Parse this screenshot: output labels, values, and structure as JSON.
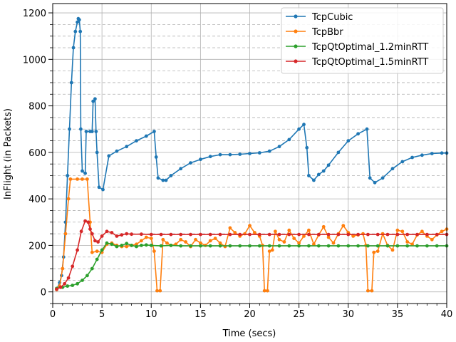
{
  "chart_data": {
    "type": "line",
    "xlabel": "Time (secs)",
    "ylabel": "InFlight (in Packets)",
    "xlim": [
      0,
      40
    ],
    "ylim": [
      -50,
      1240
    ],
    "x_ticks": [
      0,
      5,
      10,
      15,
      20,
      25,
      30,
      35,
      40
    ],
    "x_tick_labels": [
      "0",
      "5",
      "10",
      "15",
      "20",
      "25",
      "30",
      "35",
      "40"
    ],
    "y_ticks": [
      0,
      200,
      400,
      600,
      800,
      1000,
      1200
    ],
    "y_tick_labels": [
      "0",
      "200",
      "400",
      "600",
      "800",
      "1000",
      "1200"
    ],
    "y_minor_step": 50,
    "grid": "major solid, minor dashed",
    "legend_position": "top-right",
    "series": [
      {
        "name": "TcpCubic",
        "color": "#1f77b4",
        "points": [
          [
            0.4,
            10
          ],
          [
            0.7,
            40
          ],
          [
            0.9,
            70
          ],
          [
            1.1,
            150
          ],
          [
            1.3,
            300
          ],
          [
            1.5,
            500
          ],
          [
            1.7,
            700
          ],
          [
            1.9,
            900
          ],
          [
            2.1,
            1050
          ],
          [
            2.3,
            1120
          ],
          [
            2.5,
            1160
          ],
          [
            2.6,
            1175
          ],
          [
            2.7,
            1170
          ],
          [
            2.8,
            1120
          ],
          [
            2.85,
            700
          ],
          [
            3.0,
            520
          ],
          [
            3.3,
            510
          ],
          [
            3.4,
            690
          ],
          [
            3.8,
            690
          ],
          [
            4.0,
            690
          ],
          [
            4.1,
            820
          ],
          [
            4.3,
            830
          ],
          [
            4.4,
            690
          ],
          [
            4.5,
            600
          ],
          [
            4.7,
            450
          ],
          [
            5.1,
            440
          ],
          [
            5.7,
            585
          ],
          [
            6.5,
            605
          ],
          [
            7.5,
            625
          ],
          [
            8.5,
            650
          ],
          [
            9.5,
            670
          ],
          [
            10.3,
            690
          ],
          [
            10.5,
            580
          ],
          [
            10.7,
            490
          ],
          [
            11.2,
            480
          ],
          [
            11.5,
            480
          ],
          [
            12.0,
            500
          ],
          [
            13.0,
            530
          ],
          [
            14.0,
            555
          ],
          [
            15.0,
            570
          ],
          [
            16.0,
            582
          ],
          [
            17.0,
            590
          ],
          [
            18.0,
            590
          ],
          [
            19.0,
            592
          ],
          [
            20.0,
            595
          ],
          [
            21.0,
            598
          ],
          [
            22.0,
            605
          ],
          [
            23.0,
            625
          ],
          [
            24.0,
            655
          ],
          [
            25.0,
            700
          ],
          [
            25.5,
            720
          ],
          [
            25.8,
            620
          ],
          [
            26.0,
            500
          ],
          [
            26.5,
            480
          ],
          [
            27.0,
            505
          ],
          [
            27.5,
            520
          ],
          [
            28.0,
            545
          ],
          [
            29.0,
            600
          ],
          [
            30.0,
            650
          ],
          [
            31.0,
            680
          ],
          [
            31.9,
            700
          ],
          [
            32.2,
            490
          ],
          [
            32.7,
            470
          ],
          [
            33.5,
            490
          ],
          [
            34.5,
            530
          ],
          [
            35.5,
            560
          ],
          [
            36.5,
            578
          ],
          [
            37.5,
            588
          ],
          [
            38.5,
            595
          ],
          [
            39.5,
            597
          ],
          [
            40.0,
            597
          ]
        ]
      },
      {
        "name": "TcpBbr",
        "color": "#ff7f0e",
        "points": [
          [
            0.4,
            10
          ],
          [
            0.7,
            25
          ],
          [
            1.0,
            100
          ],
          [
            1.3,
            250
          ],
          [
            1.6,
            400
          ],
          [
            1.8,
            485
          ],
          [
            2.5,
            485
          ],
          [
            3.0,
            485
          ],
          [
            3.5,
            485
          ],
          [
            3.8,
            300
          ],
          [
            4.0,
            170
          ],
          [
            4.5,
            175
          ],
          [
            5.0,
            170
          ],
          [
            5.5,
            205
          ],
          [
            6.0,
            210
          ],
          [
            6.5,
            200
          ],
          [
            7.0,
            195
          ],
          [
            7.5,
            195
          ],
          [
            8.0,
            200
          ],
          [
            8.5,
            205
          ],
          [
            9.0,
            220
          ],
          [
            9.5,
            235
          ],
          [
            10.0,
            230
          ],
          [
            10.3,
            175
          ],
          [
            10.6,
            5
          ],
          [
            10.9,
            5
          ],
          [
            11.2,
            225
          ],
          [
            11.6,
            210
          ],
          [
            12.0,
            200
          ],
          [
            12.5,
            205
          ],
          [
            13.0,
            225
          ],
          [
            13.5,
            215
          ],
          [
            14.0,
            195
          ],
          [
            14.5,
            225
          ],
          [
            15.0,
            210
          ],
          [
            15.5,
            200
          ],
          [
            16.0,
            220
          ],
          [
            16.5,
            230
          ],
          [
            17.0,
            210
          ],
          [
            17.5,
            195
          ],
          [
            18.0,
            275
          ],
          [
            18.5,
            255
          ],
          [
            19.0,
            240
          ],
          [
            19.5,
            250
          ],
          [
            20.0,
            285
          ],
          [
            20.5,
            255
          ],
          [
            21.0,
            240
          ],
          [
            21.3,
            200
          ],
          [
            21.5,
            5
          ],
          [
            21.8,
            5
          ],
          [
            22.0,
            175
          ],
          [
            22.3,
            180
          ],
          [
            22.6,
            260
          ],
          [
            23.0,
            225
          ],
          [
            23.5,
            215
          ],
          [
            24.0,
            265
          ],
          [
            24.5,
            230
          ],
          [
            25.0,
            210
          ],
          [
            25.5,
            240
          ],
          [
            26.0,
            265
          ],
          [
            26.5,
            205
          ],
          [
            27.0,
            245
          ],
          [
            27.5,
            280
          ],
          [
            28.0,
            235
          ],
          [
            28.5,
            210
          ],
          [
            29.0,
            250
          ],
          [
            29.5,
            285
          ],
          [
            30.0,
            255
          ],
          [
            30.5,
            240
          ],
          [
            31.0,
            245
          ],
          [
            31.5,
            250
          ],
          [
            31.8,
            200
          ],
          [
            32.0,
            5
          ],
          [
            32.4,
            5
          ],
          [
            32.6,
            170
          ],
          [
            33.0,
            175
          ],
          [
            33.5,
            250
          ],
          [
            34.0,
            200
          ],
          [
            34.5,
            180
          ],
          [
            35.0,
            265
          ],
          [
            35.5,
            260
          ],
          [
            36.0,
            215
          ],
          [
            36.5,
            205
          ],
          [
            37.0,
            245
          ],
          [
            37.5,
            260
          ],
          [
            38.0,
            240
          ],
          [
            38.5,
            225
          ],
          [
            39.0,
            245
          ],
          [
            39.5,
            260
          ],
          [
            40.0,
            270
          ]
        ]
      },
      {
        "name": "TcpQtOptimal_1.2minRTT",
        "color": "#2ca02c",
        "points": [
          [
            0.4,
            15
          ],
          [
            1.0,
            20
          ],
          [
            1.5,
            25
          ],
          [
            2.0,
            28
          ],
          [
            2.5,
            35
          ],
          [
            3.0,
            50
          ],
          [
            3.5,
            70
          ],
          [
            4.0,
            100
          ],
          [
            4.5,
            140
          ],
          [
            5.0,
            180
          ],
          [
            5.5,
            210
          ],
          [
            6.0,
            205
          ],
          [
            6.5,
            195
          ],
          [
            7.0,
            200
          ],
          [
            7.5,
            208
          ],
          [
            8.0,
            200
          ],
          [
            8.5,
            195
          ],
          [
            9.0,
            200
          ],
          [
            9.5,
            202
          ],
          [
            10.0,
            200
          ],
          [
            11.0,
            198
          ],
          [
            12.0,
            200
          ],
          [
            13.0,
            198
          ],
          [
            14.0,
            198
          ],
          [
            15.0,
            198
          ],
          [
            16.0,
            198
          ],
          [
            17.0,
            198
          ],
          [
            18.0,
            198
          ],
          [
            19.0,
            198
          ],
          [
            20.0,
            198
          ],
          [
            21.0,
            198
          ],
          [
            22.0,
            198
          ],
          [
            23.0,
            198
          ],
          [
            24.0,
            198
          ],
          [
            25.0,
            198
          ],
          [
            26.0,
            198
          ],
          [
            27.0,
            198
          ],
          [
            28.0,
            198
          ],
          [
            29.0,
            198
          ],
          [
            30.0,
            198
          ],
          [
            31.0,
            198
          ],
          [
            32.0,
            198
          ],
          [
            33.0,
            198
          ],
          [
            34.0,
            198
          ],
          [
            35.0,
            198
          ],
          [
            36.0,
            198
          ],
          [
            37.0,
            198
          ],
          [
            38.0,
            198
          ],
          [
            39.0,
            198
          ],
          [
            40.0,
            198
          ]
        ]
      },
      {
        "name": "TcpQtOptimal_1.5minRTT",
        "color": "#d62728",
        "points": [
          [
            0.4,
            12
          ],
          [
            0.8,
            20
          ],
          [
            1.2,
            35
          ],
          [
            1.6,
            60
          ],
          [
            2.0,
            110
          ],
          [
            2.5,
            180
          ],
          [
            2.9,
            260
          ],
          [
            3.3,
            305
          ],
          [
            3.6,
            300
          ],
          [
            3.8,
            270
          ],
          [
            4.0,
            250
          ],
          [
            4.3,
            220
          ],
          [
            4.6,
            215
          ],
          [
            5.0,
            240
          ],
          [
            5.5,
            260
          ],
          [
            6.0,
            255
          ],
          [
            6.5,
            240
          ],
          [
            7.0,
            245
          ],
          [
            7.5,
            250
          ],
          [
            8.0,
            248
          ],
          [
            9.0,
            248
          ],
          [
            10.0,
            247
          ],
          [
            11.0,
            247
          ],
          [
            12.0,
            247
          ],
          [
            13.0,
            247
          ],
          [
            14.0,
            247
          ],
          [
            15.0,
            247
          ],
          [
            16.0,
            247
          ],
          [
            17.0,
            247
          ],
          [
            18.0,
            247
          ],
          [
            19.0,
            247
          ],
          [
            20.0,
            247
          ],
          [
            21.0,
            247
          ],
          [
            22.0,
            247
          ],
          [
            23.0,
            247
          ],
          [
            24.0,
            247
          ],
          [
            25.0,
            247
          ],
          [
            26.0,
            247
          ],
          [
            27.0,
            247
          ],
          [
            28.0,
            247
          ],
          [
            29.0,
            247
          ],
          [
            30.0,
            247
          ],
          [
            31.0,
            247
          ],
          [
            32.0,
            247
          ],
          [
            33.0,
            247
          ],
          [
            34.0,
            247
          ],
          [
            35.0,
            247
          ],
          [
            36.0,
            247
          ],
          [
            37.0,
            247
          ],
          [
            38.0,
            247
          ],
          [
            39.0,
            247
          ],
          [
            40.0,
            247
          ]
        ]
      }
    ]
  }
}
